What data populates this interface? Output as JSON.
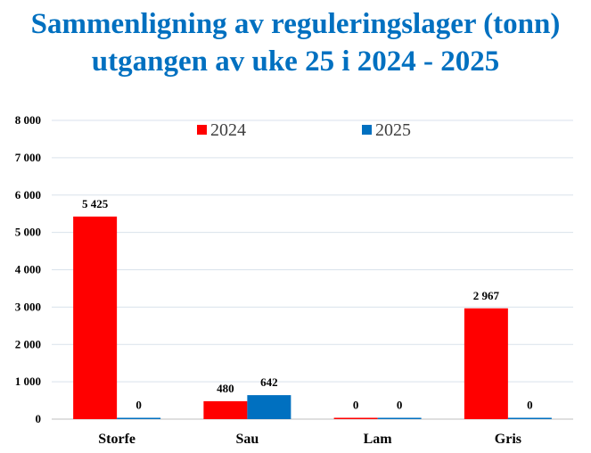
{
  "chart_data": {
    "type": "bar",
    "title_line1": "Sammenligning av reguleringslager (tonn)",
    "title_line2": "utgangen av uke 25 i 2024 - 2025",
    "categories": [
      "Storfe",
      "Sau",
      "Lam",
      "Gris"
    ],
    "series": [
      {
        "name": "2024",
        "color": "#ff0000",
        "values": [
          5425,
          480,
          0,
          2967
        ],
        "labels": [
          "5 425",
          "480",
          "0",
          "2 967"
        ]
      },
      {
        "name": "2025",
        "color": "#0070c0",
        "values": [
          0,
          642,
          0,
          0
        ],
        "labels": [
          "0",
          "642",
          "0",
          "0"
        ]
      }
    ],
    "ylim": [
      0,
      8000
    ],
    "yticks": [
      0,
      1000,
      2000,
      3000,
      4000,
      5000,
      6000,
      7000,
      8000
    ],
    "ytick_labels": [
      "0",
      "1 000",
      "2 000",
      "3 000",
      "4 000",
      "5 000",
      "6 000",
      "7 000",
      "8 000"
    ],
    "grid": true,
    "legend_position": "top-center"
  }
}
